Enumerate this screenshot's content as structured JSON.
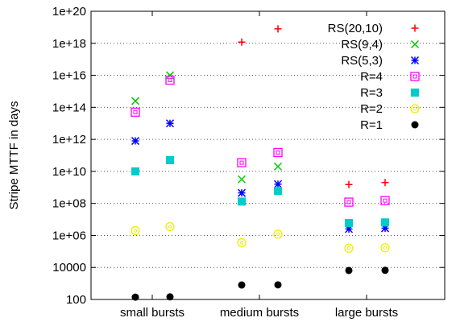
{
  "chart_data": {
    "type": "scatter",
    "title": "",
    "xlabel": "",
    "ylabel": "Stripe MTTF in days",
    "yscale": "log",
    "ylim": [
      100,
      1e+20
    ],
    "yticks": [
      {
        "value": 100,
        "label": "100"
      },
      {
        "value": 10000,
        "label": "10000"
      },
      {
        "value": 1000000.0,
        "label": "1e+06"
      },
      {
        "value": 100000000.0,
        "label": "1e+08"
      },
      {
        "value": 10000000000.0,
        "label": "1e+10"
      },
      {
        "value": 1000000000000.0,
        "label": "1e+12"
      },
      {
        "value": 100000000000000.0,
        "label": "1e+14"
      },
      {
        "value": 1e+16,
        "label": "1e+16"
      },
      {
        "value": 1e+18,
        "label": "1e+18"
      },
      {
        "value": 1e+20,
        "label": "1e+20"
      }
    ],
    "categories": [
      "small bursts",
      "medium bursts",
      "large bursts"
    ],
    "grid": "horizontal dotted",
    "legend_position": "top-right",
    "series": [
      {
        "name": "RS(20,10)",
        "marker": "plus",
        "color": "#ff0000",
        "points": [
          [
            2,
            1.2e+18
          ],
          [
            2,
            8e+18
          ],
          [
            3,
            1500000000.0
          ],
          [
            3,
            2000000000.0
          ]
        ]
      },
      {
        "name": "RS(9,4)",
        "marker": "cross",
        "color": "#00cc00",
        "points": [
          [
            1,
            250000000000000.0
          ],
          [
            1,
            1e+16
          ],
          [
            2,
            3200000000.0
          ],
          [
            2,
            20000000000.0
          ]
        ]
      },
      {
        "name": "RS(5,3)",
        "marker": "star",
        "color": "#0000ff",
        "points": [
          [
            1,
            800000000000.0
          ],
          [
            1,
            10000000000000.0
          ],
          [
            2,
            450000000.0
          ],
          [
            2,
            1600000000.0
          ],
          [
            3,
            2500000.0
          ],
          [
            3,
            2800000.0
          ]
        ]
      },
      {
        "name": "R=4",
        "marker": "square-open",
        "color": "#ff00ff",
        "points": [
          [
            1,
            50000000000000.0
          ],
          [
            1,
            5000000000000000.0
          ],
          [
            2,
            35000000000.0
          ],
          [
            2,
            150000000000.0
          ],
          [
            3,
            120000000.0
          ],
          [
            3,
            150000000.0
          ]
        ]
      },
      {
        "name": "R=3",
        "marker": "square-filled",
        "color": "#00cccc",
        "points": [
          [
            1,
            10000000000.0
          ],
          [
            1,
            50000000000.0
          ],
          [
            2,
            130000000.0
          ],
          [
            2,
            600000000.0
          ],
          [
            3,
            6000000.0
          ],
          [
            3,
            6500000.0
          ]
        ]
      },
      {
        "name": "R=2",
        "marker": "circle-open",
        "color": "#eeee00",
        "points": [
          [
            1,
            2000000.0
          ],
          [
            1,
            3500000.0
          ],
          [
            2,
            350000.0
          ],
          [
            2,
            1200000.0
          ],
          [
            3,
            160000.0
          ],
          [
            3,
            170000.0
          ]
        ]
      },
      {
        "name": "R=1",
        "marker": "circle-filled",
        "color": "#000000",
        "points": [
          [
            1,
            140
          ],
          [
            1,
            145
          ],
          [
            2,
            800
          ],
          [
            2,
            820
          ],
          [
            3,
            6500
          ],
          [
            3,
            6600
          ]
        ]
      }
    ]
  }
}
